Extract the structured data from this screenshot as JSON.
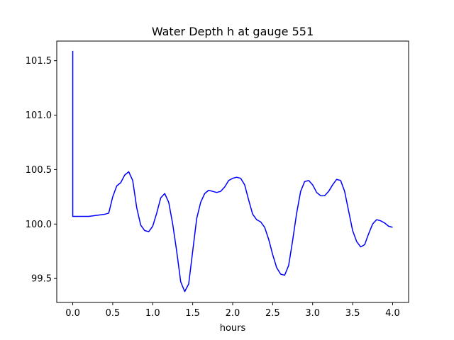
{
  "chart_data": {
    "type": "line",
    "title": "Water Depth h at gauge 551",
    "xlabel": "hours",
    "ylabel": "",
    "xlim": [
      -0.2,
      4.2
    ],
    "ylim": [
      99.28,
      101.68
    ],
    "xticks": [
      "0.0",
      "0.5",
      "1.0",
      "1.5",
      "2.0",
      "2.5",
      "3.0",
      "3.5",
      "4.0"
    ],
    "yticks": [
      "99.5",
      "100.0",
      "100.5",
      "101.0",
      "101.5"
    ],
    "grid": false,
    "series": [
      {
        "color": "#0000ff",
        "points": [
          [
            0.0,
            101.59
          ],
          [
            0.0,
            100.07
          ],
          [
            0.1,
            100.07
          ],
          [
            0.2,
            100.07
          ],
          [
            0.3,
            100.08
          ],
          [
            0.4,
            100.09
          ],
          [
            0.45,
            100.1
          ],
          [
            0.5,
            100.25
          ],
          [
            0.55,
            100.35
          ],
          [
            0.6,
            100.38
          ],
          [
            0.65,
            100.45
          ],
          [
            0.7,
            100.48
          ],
          [
            0.75,
            100.4
          ],
          [
            0.8,
            100.15
          ],
          [
            0.85,
            99.99
          ],
          [
            0.9,
            99.94
          ],
          [
            0.95,
            99.93
          ],
          [
            1.0,
            99.98
          ],
          [
            1.05,
            100.1
          ],
          [
            1.1,
            100.24
          ],
          [
            1.15,
            100.28
          ],
          [
            1.2,
            100.2
          ],
          [
            1.25,
            100.0
          ],
          [
            1.3,
            99.75
          ],
          [
            1.35,
            99.47
          ],
          [
            1.4,
            99.38
          ],
          [
            1.45,
            99.45
          ],
          [
            1.5,
            99.75
          ],
          [
            1.55,
            100.05
          ],
          [
            1.6,
            100.2
          ],
          [
            1.65,
            100.28
          ],
          [
            1.7,
            100.31
          ],
          [
            1.75,
            100.3
          ],
          [
            1.8,
            100.29
          ],
          [
            1.85,
            100.3
          ],
          [
            1.9,
            100.34
          ],
          [
            1.95,
            100.4
          ],
          [
            2.0,
            100.42
          ],
          [
            2.05,
            100.43
          ],
          [
            2.1,
            100.42
          ],
          [
            2.15,
            100.36
          ],
          [
            2.2,
            100.22
          ],
          [
            2.25,
            100.09
          ],
          [
            2.3,
            100.04
          ],
          [
            2.35,
            100.02
          ],
          [
            2.4,
            99.97
          ],
          [
            2.45,
            99.86
          ],
          [
            2.5,
            99.72
          ],
          [
            2.55,
            99.6
          ],
          [
            2.6,
            99.54
          ],
          [
            2.65,
            99.53
          ],
          [
            2.7,
            99.62
          ],
          [
            2.75,
            99.85
          ],
          [
            2.8,
            100.1
          ],
          [
            2.85,
            100.3
          ],
          [
            2.9,
            100.39
          ],
          [
            2.95,
            100.4
          ],
          [
            3.0,
            100.36
          ],
          [
            3.05,
            100.29
          ],
          [
            3.1,
            100.26
          ],
          [
            3.15,
            100.26
          ],
          [
            3.2,
            100.3
          ],
          [
            3.25,
            100.36
          ],
          [
            3.3,
            100.41
          ],
          [
            3.35,
            100.4
          ],
          [
            3.4,
            100.3
          ],
          [
            3.45,
            100.12
          ],
          [
            3.5,
            99.94
          ],
          [
            3.55,
            99.84
          ],
          [
            3.6,
            99.79
          ],
          [
            3.65,
            99.81
          ],
          [
            3.7,
            99.91
          ],
          [
            3.75,
            100.0
          ],
          [
            3.8,
            100.04
          ],
          [
            3.85,
            100.03
          ],
          [
            3.9,
            100.01
          ],
          [
            3.95,
            99.98
          ],
          [
            4.0,
            99.97
          ]
        ]
      }
    ]
  }
}
